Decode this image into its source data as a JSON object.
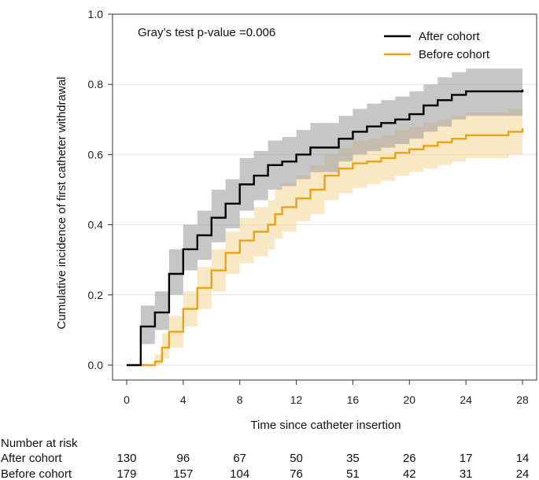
{
  "chart_data": {
    "type": "line",
    "subtype": "step-cumulative-incidence",
    "title": "",
    "annotation": "Gray’s test p-value =0.006",
    "xlabel": "Time since catheter insertion",
    "ylabel": "Cumulative incidence of first catheter withdrawal",
    "xlim": [
      -1,
      29
    ],
    "ylim": [
      0,
      1.0
    ],
    "xticks": [
      0,
      4,
      8,
      12,
      16,
      20,
      24,
      28
    ],
    "yticks": [
      "0.0",
      "0.2",
      "0.4",
      "0.6",
      "0.8",
      "1.0"
    ],
    "grid": "horizontal",
    "legend_position": "top-right",
    "series": [
      {
        "name": "After cohort",
        "color": "#000000",
        "band_color": "#a0a0a0",
        "steps": [
          [
            0,
            0.0
          ],
          [
            1,
            0.11
          ],
          [
            2,
            0.15
          ],
          [
            3,
            0.26
          ],
          [
            4,
            0.33
          ],
          [
            5,
            0.37
          ],
          [
            6,
            0.42
          ],
          [
            7,
            0.46
          ],
          [
            8,
            0.515
          ],
          [
            9,
            0.54
          ],
          [
            10,
            0.57
          ],
          [
            11,
            0.58
          ],
          [
            12,
            0.6
          ],
          [
            13,
            0.62
          ],
          [
            15,
            0.645
          ],
          [
            16,
            0.665
          ],
          [
            17,
            0.68
          ],
          [
            18,
            0.69
          ],
          [
            19,
            0.7
          ],
          [
            20,
            0.715
          ],
          [
            21,
            0.74
          ],
          [
            22,
            0.755
          ],
          [
            23,
            0.77
          ],
          [
            24,
            0.78
          ],
          [
            28,
            0.785
          ]
        ],
        "lower": [
          [
            0,
            0.0
          ],
          [
            1,
            0.06
          ],
          [
            2,
            0.1
          ],
          [
            3,
            0.2
          ],
          [
            4,
            0.27
          ],
          [
            5,
            0.3
          ],
          [
            6,
            0.35
          ],
          [
            7,
            0.39
          ],
          [
            8,
            0.44
          ],
          [
            9,
            0.47
          ],
          [
            10,
            0.5
          ],
          [
            11,
            0.51
          ],
          [
            12,
            0.53
          ],
          [
            13,
            0.55
          ],
          [
            15,
            0.58
          ],
          [
            16,
            0.6
          ],
          [
            17,
            0.61
          ],
          [
            18,
            0.62
          ],
          [
            19,
            0.63
          ],
          [
            20,
            0.645
          ],
          [
            21,
            0.665
          ],
          [
            22,
            0.68
          ],
          [
            23,
            0.7
          ],
          [
            24,
            0.71
          ],
          [
            28,
            0.72
          ]
        ],
        "upper": [
          [
            0,
            0.0
          ],
          [
            1,
            0.17
          ],
          [
            2,
            0.21
          ],
          [
            3,
            0.33
          ],
          [
            4,
            0.4
          ],
          [
            5,
            0.44
          ],
          [
            6,
            0.5
          ],
          [
            7,
            0.53
          ],
          [
            8,
            0.59
          ],
          [
            9,
            0.61
          ],
          [
            10,
            0.64
          ],
          [
            11,
            0.65
          ],
          [
            12,
            0.67
          ],
          [
            13,
            0.69
          ],
          [
            15,
            0.71
          ],
          [
            16,
            0.73
          ],
          [
            17,
            0.745
          ],
          [
            18,
            0.755
          ],
          [
            19,
            0.765
          ],
          [
            20,
            0.78
          ],
          [
            21,
            0.8
          ],
          [
            22,
            0.82
          ],
          [
            23,
            0.835
          ],
          [
            24,
            0.845
          ],
          [
            28,
            0.855
          ]
        ]
      },
      {
        "name": "Before cohort",
        "color": "#e8a317",
        "band_color": "#f3d28a",
        "steps": [
          [
            0,
            0.0
          ],
          [
            2,
            0.01
          ],
          [
            2.5,
            0.05
          ],
          [
            3,
            0.095
          ],
          [
            4,
            0.16
          ],
          [
            5,
            0.22
          ],
          [
            6,
            0.27
          ],
          [
            7,
            0.32
          ],
          [
            8,
            0.355
          ],
          [
            9,
            0.38
          ],
          [
            10,
            0.4
          ],
          [
            10.5,
            0.43
          ],
          [
            11,
            0.45
          ],
          [
            12,
            0.475
          ],
          [
            13,
            0.5
          ],
          [
            14,
            0.54
          ],
          [
            15,
            0.56
          ],
          [
            16,
            0.575
          ],
          [
            17,
            0.58
          ],
          [
            18,
            0.59
          ],
          [
            19,
            0.605
          ],
          [
            20,
            0.615
          ],
          [
            21,
            0.625
          ],
          [
            22,
            0.635
          ],
          [
            23,
            0.645
          ],
          [
            24,
            0.655
          ],
          [
            27,
            0.665
          ],
          [
            28,
            0.675
          ]
        ],
        "lower": [
          [
            0,
            0.0
          ],
          [
            2,
            0.0
          ],
          [
            2.5,
            0.02
          ],
          [
            3,
            0.05
          ],
          [
            4,
            0.11
          ],
          [
            5,
            0.16
          ],
          [
            6,
            0.21
          ],
          [
            7,
            0.26
          ],
          [
            8,
            0.29
          ],
          [
            9,
            0.31
          ],
          [
            10,
            0.33
          ],
          [
            10.5,
            0.36
          ],
          [
            11,
            0.38
          ],
          [
            12,
            0.41
          ],
          [
            13,
            0.43
          ],
          [
            14,
            0.47
          ],
          [
            15,
            0.49
          ],
          [
            16,
            0.505
          ],
          [
            17,
            0.515
          ],
          [
            18,
            0.525
          ],
          [
            19,
            0.54
          ],
          [
            20,
            0.55
          ],
          [
            21,
            0.56
          ],
          [
            22,
            0.57
          ],
          [
            23,
            0.58
          ],
          [
            24,
            0.59
          ],
          [
            27,
            0.6
          ],
          [
            28,
            0.6
          ]
        ],
        "upper": [
          [
            0,
            0.0
          ],
          [
            2,
            0.03
          ],
          [
            2.5,
            0.09
          ],
          [
            3,
            0.14
          ],
          [
            4,
            0.21
          ],
          [
            5,
            0.28
          ],
          [
            6,
            0.33
          ],
          [
            7,
            0.38
          ],
          [
            8,
            0.42
          ],
          [
            9,
            0.45
          ],
          [
            10,
            0.47
          ],
          [
            10.5,
            0.5
          ],
          [
            11,
            0.52
          ],
          [
            12,
            0.54
          ],
          [
            13,
            0.57
          ],
          [
            14,
            0.6
          ],
          [
            15,
            0.62
          ],
          [
            16,
            0.64
          ],
          [
            17,
            0.645
          ],
          [
            18,
            0.655
          ],
          [
            19,
            0.67
          ],
          [
            20,
            0.68
          ],
          [
            21,
            0.69
          ],
          [
            22,
            0.7
          ],
          [
            23,
            0.71
          ],
          [
            24,
            0.72
          ],
          [
            27,
            0.73
          ],
          [
            28,
            0.74
          ]
        ]
      }
    ],
    "risk_table": {
      "title": "Number at risk",
      "times": [
        0,
        4,
        8,
        12,
        16,
        20,
        24,
        28
      ],
      "rows": [
        {
          "label": "After cohort",
          "values": [
            "130",
            "96",
            "67",
            "50",
            "35",
            "26",
            "17",
            "14"
          ]
        },
        {
          "label": "Before cohort",
          "values": [
            "179",
            "157",
            "104",
            "76",
            "51",
            "42",
            "31",
            "24"
          ]
        }
      ]
    }
  }
}
